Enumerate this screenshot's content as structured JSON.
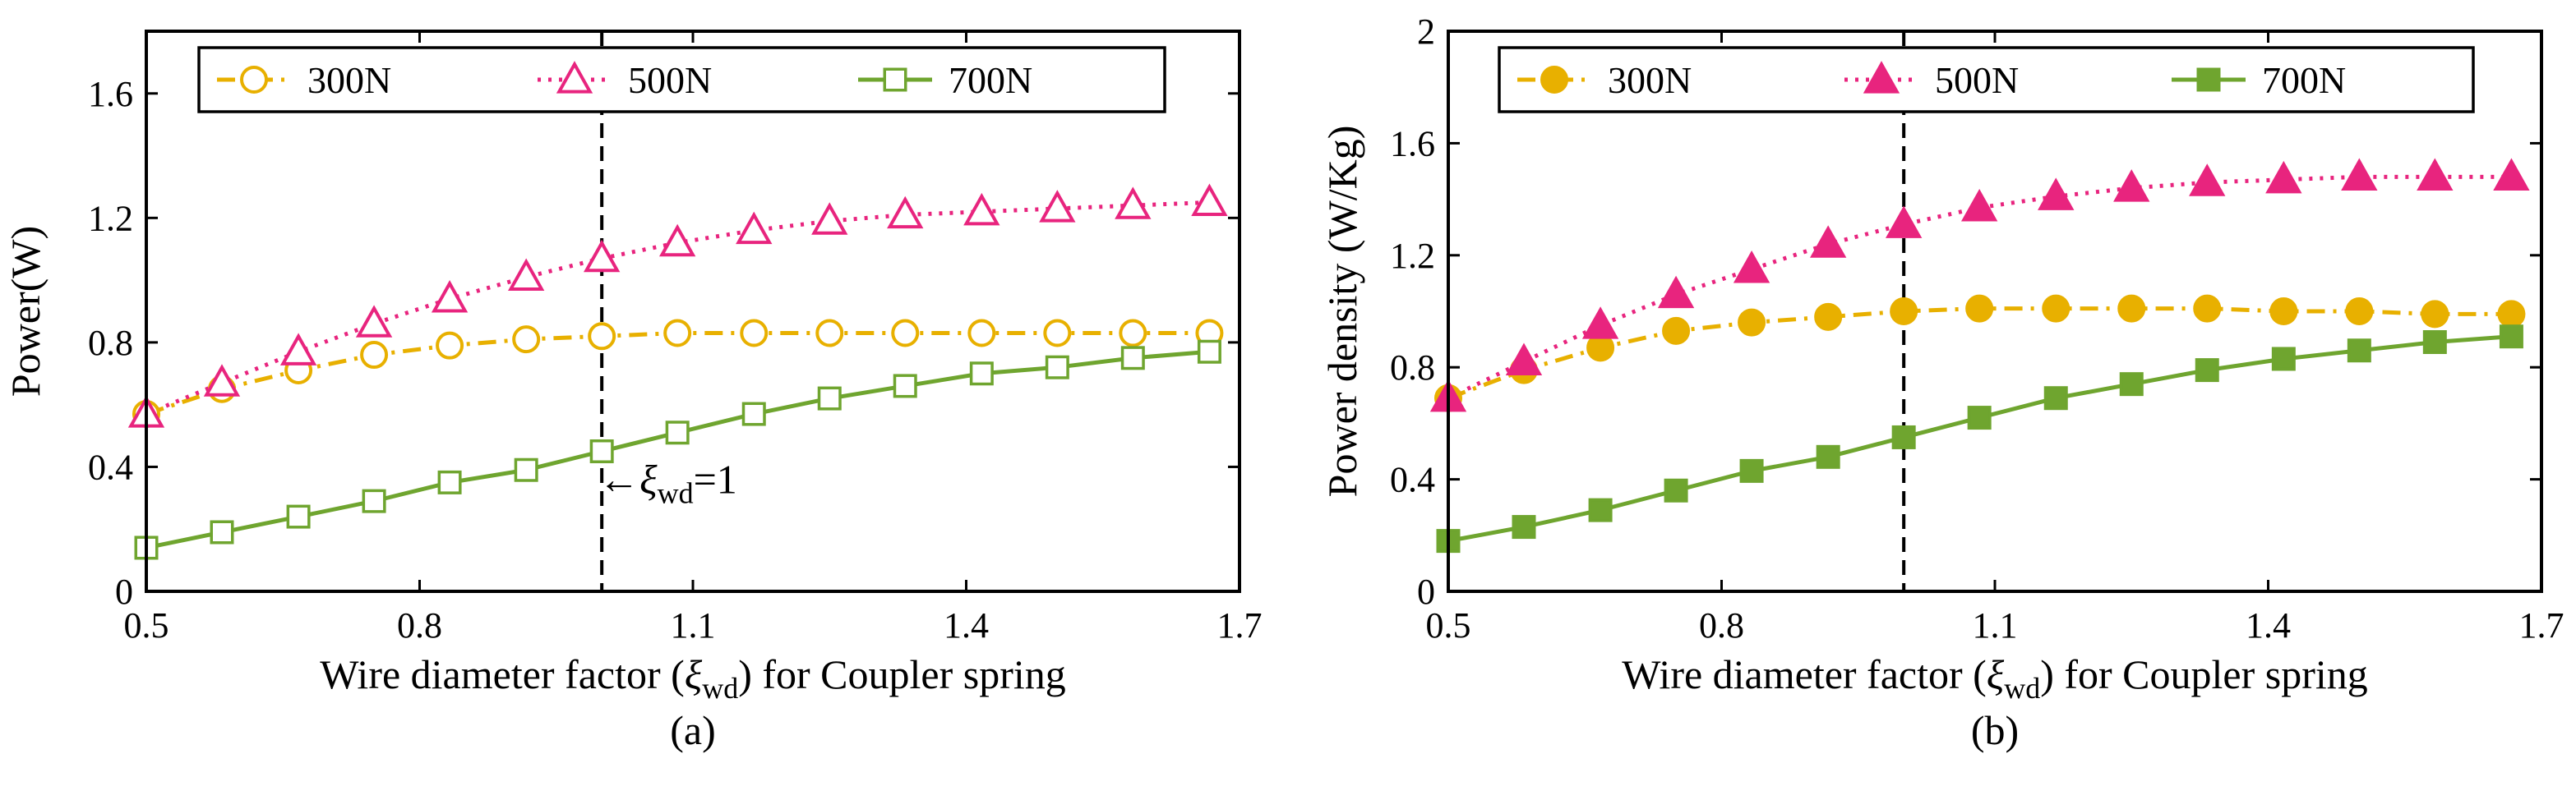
{
  "chart_data": [
    {
      "type": "line",
      "panel": "a",
      "caption": "(a)",
      "xlabel_prefix": "Wire diameter factor (",
      "xlabel_symbol": "ξ",
      "xlabel_sub": "wd",
      "xlabel_suffix": ") for Coupler spring",
      "ylabel": "Power(W)",
      "xlim": [
        0.5,
        1.7
      ],
      "ylim": [
        0,
        1.8
      ],
      "xticks": [
        0.5,
        0.8,
        1.1,
        1.4,
        1.7
      ],
      "xtick_labels": [
        "0.5",
        "0.8",
        "1.1",
        "1.4",
        "1.7"
      ],
      "yticks": [
        0,
        0.4,
        0.8,
        1.2,
        1.6
      ],
      "ytick_labels": [
        "0",
        "0.4",
        "0.8",
        "1.2",
        "1.6"
      ],
      "vline_x": 1.0,
      "annotation": {
        "arrow": "←",
        "symbol": "ξ",
        "sub": "wd",
        "text": "=1"
      },
      "legend_position": "top",
      "x": [
        0.5,
        0.583,
        0.667,
        0.75,
        0.833,
        0.917,
        1.0,
        1.083,
        1.167,
        1.25,
        1.333,
        1.417,
        1.5,
        1.583,
        1.667
      ],
      "series": [
        {
          "name": "300N",
          "color": "#E8B000",
          "marker": "circle",
          "filled": false,
          "line": "dashdot",
          "values": [
            0.57,
            0.65,
            0.71,
            0.76,
            0.79,
            0.81,
            0.82,
            0.83,
            0.83,
            0.83,
            0.83,
            0.83,
            0.83,
            0.83,
            0.83
          ]
        },
        {
          "name": "500N",
          "color": "#E8247E",
          "marker": "triangle",
          "filled": false,
          "line": "dotted",
          "values": [
            0.57,
            0.67,
            0.77,
            0.86,
            0.94,
            1.01,
            1.07,
            1.12,
            1.16,
            1.19,
            1.21,
            1.22,
            1.23,
            1.24,
            1.25
          ]
        },
        {
          "name": "700N",
          "color": "#6FA52F",
          "marker": "square",
          "filled": false,
          "line": "solid",
          "values": [
            0.14,
            0.19,
            0.24,
            0.29,
            0.35,
            0.39,
            0.45,
            0.51,
            0.57,
            0.62,
            0.66,
            0.7,
            0.72,
            0.75,
            0.77
          ]
        }
      ]
    },
    {
      "type": "line",
      "panel": "b",
      "caption": "(b)",
      "xlabel_prefix": "Wire diameter factor (",
      "xlabel_symbol": "ξ",
      "xlabel_sub": "wd",
      "xlabel_suffix": ") for Coupler spring",
      "ylabel": "Power density (W/Kg)",
      "xlim": [
        0.5,
        1.7
      ],
      "ylim": [
        0,
        2.0
      ],
      "xticks": [
        0.5,
        0.8,
        1.1,
        1.4,
        1.7
      ],
      "xtick_labels": [
        "0.5",
        "0.8",
        "1.1",
        "1.4",
        "1.7"
      ],
      "yticks": [
        0,
        0.4,
        0.8,
        1.2,
        1.6,
        2.0
      ],
      "ytick_labels": [
        "0",
        "0.4",
        "0.8",
        "1.2",
        "1.6",
        "2"
      ],
      "vline_x": 1.0,
      "legend_position": "top",
      "x": [
        0.5,
        0.583,
        0.667,
        0.75,
        0.833,
        0.917,
        1.0,
        1.083,
        1.167,
        1.25,
        1.333,
        1.417,
        1.5,
        1.583,
        1.667
      ],
      "series": [
        {
          "name": "300N",
          "color": "#E8B000",
          "marker": "circle",
          "filled": true,
          "line": "dashdot",
          "values": [
            0.69,
            0.79,
            0.87,
            0.93,
            0.96,
            0.98,
            1.0,
            1.01,
            1.01,
            1.01,
            1.01,
            1.0,
            1.0,
            0.99,
            0.99
          ]
        },
        {
          "name": "500N",
          "color": "#E8247E",
          "marker": "triangle",
          "filled": true,
          "line": "dotted",
          "values": [
            0.69,
            0.82,
            0.95,
            1.06,
            1.15,
            1.24,
            1.31,
            1.37,
            1.41,
            1.44,
            1.46,
            1.47,
            1.48,
            1.48,
            1.48
          ]
        },
        {
          "name": "700N",
          "color": "#6FA52F",
          "marker": "square",
          "filled": true,
          "line": "solid",
          "values": [
            0.18,
            0.23,
            0.29,
            0.36,
            0.43,
            0.48,
            0.55,
            0.62,
            0.69,
            0.74,
            0.79,
            0.83,
            0.86,
            0.89,
            0.91
          ]
        }
      ]
    }
  ]
}
